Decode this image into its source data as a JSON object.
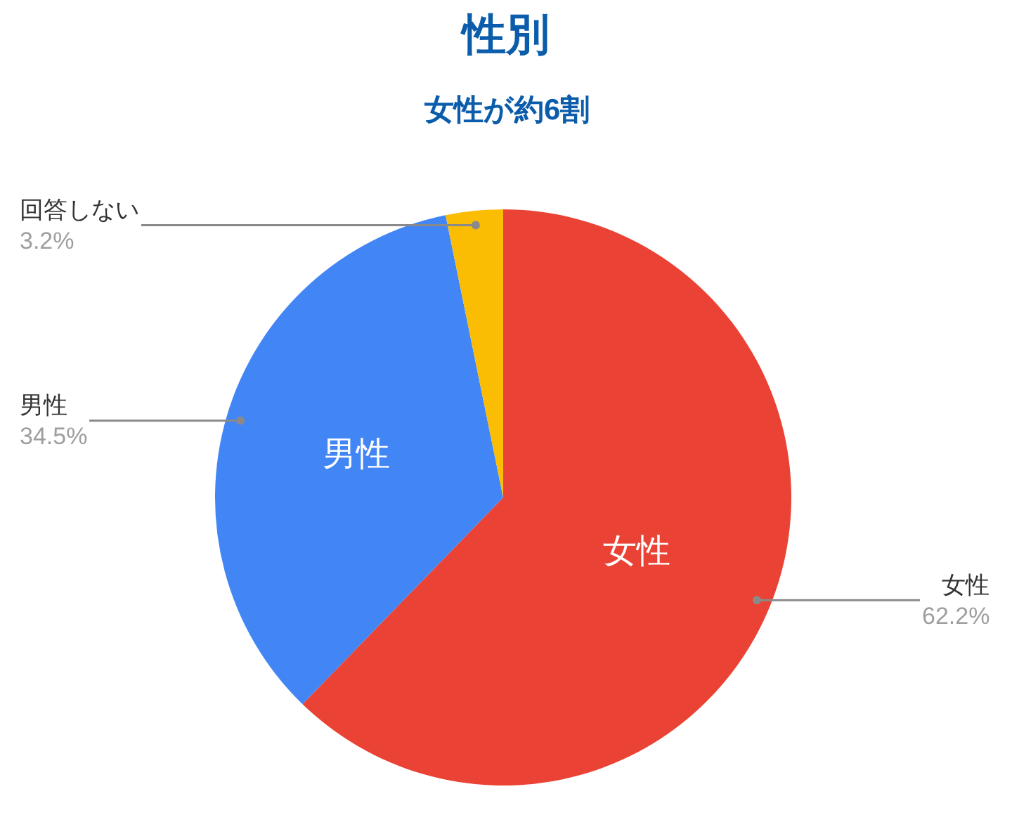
{
  "chart_data": {
    "type": "pie",
    "title": "性別",
    "subtitle": "女性が約6割",
    "categories": [
      "女性",
      "男性",
      "回答しない"
    ],
    "values": [
      62.2,
      34.5,
      3.2
    ],
    "value_labels": [
      "62.2%",
      "34.5%",
      "3.2%"
    ],
    "colors": [
      "#ea4335",
      "#4285f4",
      "#fbbc04"
    ]
  }
}
